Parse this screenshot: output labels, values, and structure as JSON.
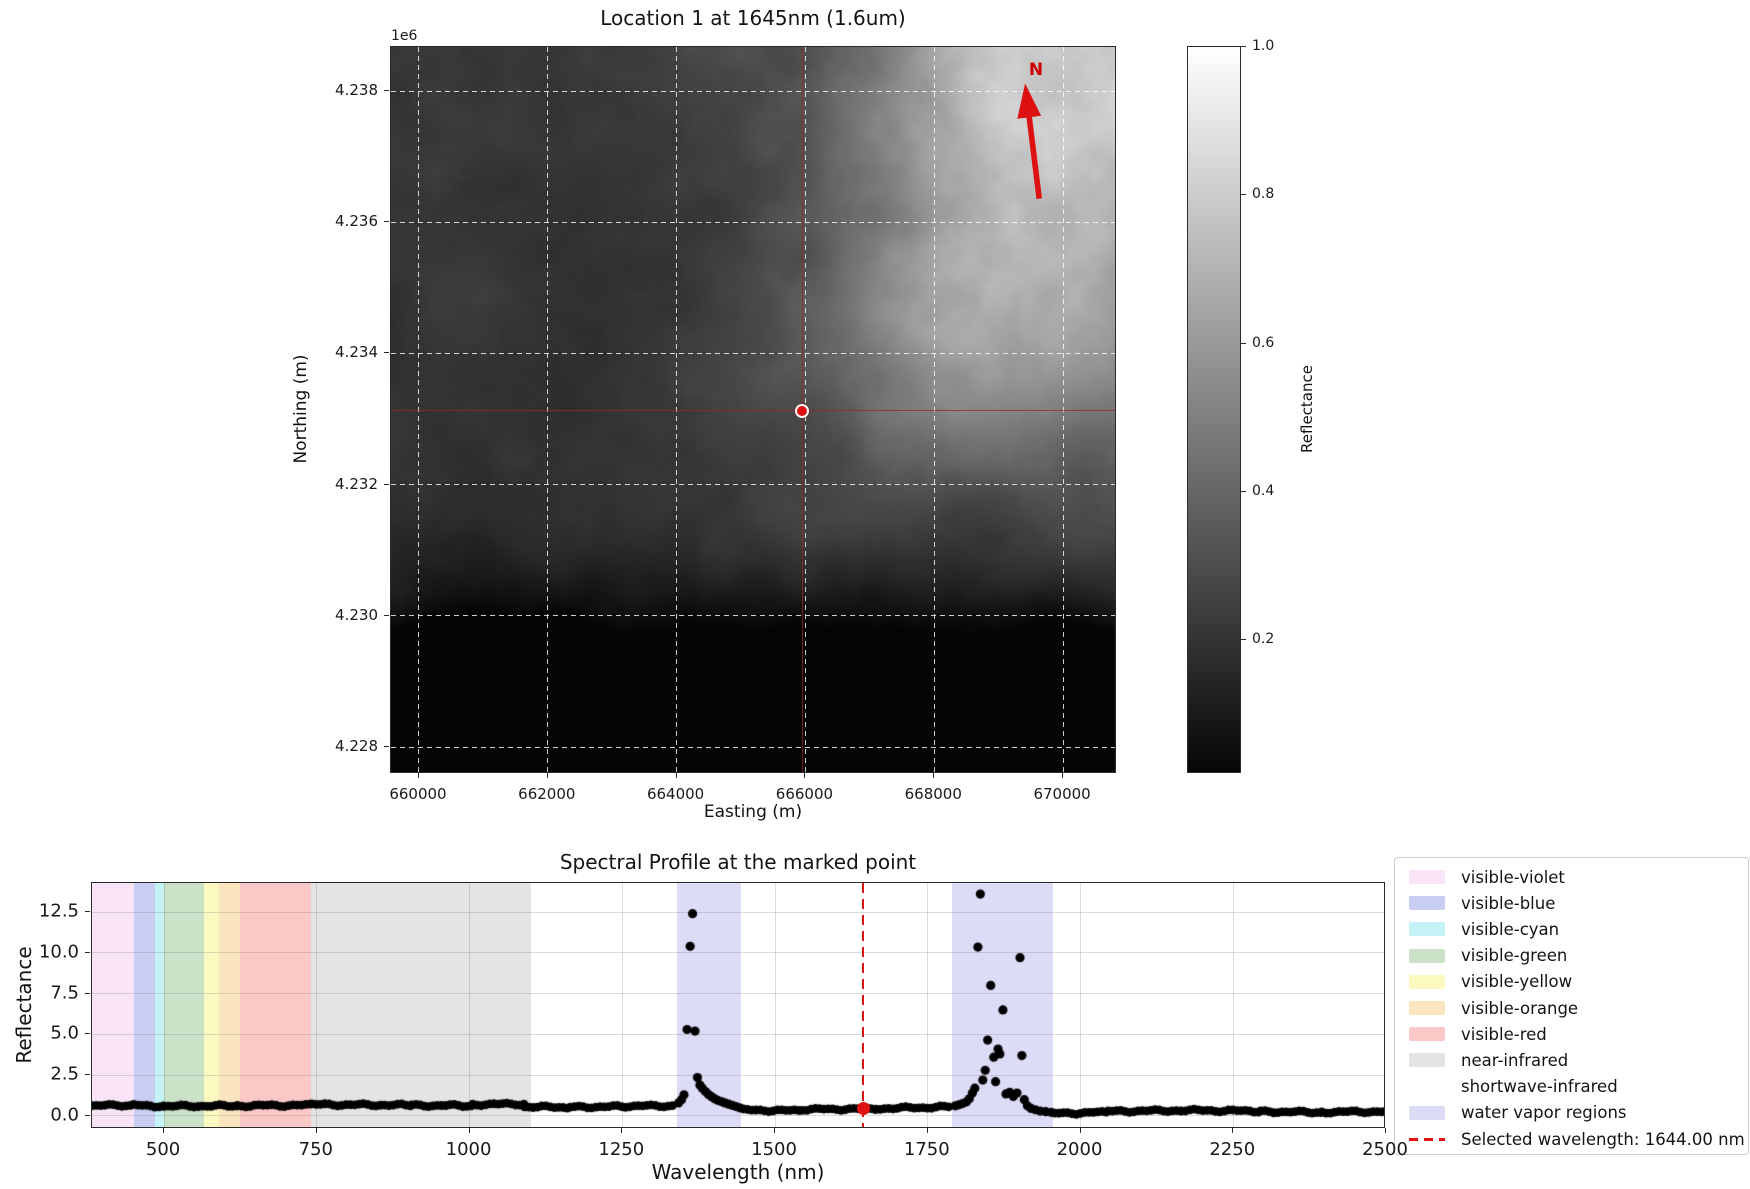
{
  "map_panel": {
    "title": "Location 1 at 1645nm (1.6um)",
    "offset_label": "1e6",
    "xlabel": "Easting (m)",
    "ylabel": "Northing (m)",
    "x_tick_labels": [
      "660000",
      "662000",
      "664000",
      "666000",
      "668000",
      "670000"
    ],
    "x_tick_values": [
      660000,
      662000,
      664000,
      666000,
      668000,
      670000
    ],
    "y_tick_labels": [
      "4.238",
      "4.236",
      "4.234",
      "4.232",
      "4.230",
      "4.228"
    ],
    "y_tick_values": [
      4238000,
      4236000,
      4234000,
      4232000,
      4230000,
      4228000
    ],
    "extent": {
      "easting_range": [
        659566,
        670837
      ],
      "northing_range": [
        4227589,
        4238671
      ]
    },
    "north_label": "N",
    "marked_point": {
      "easting_m": 665950,
      "northing_m": 4233130
    },
    "marker_color": "#dd1111",
    "marker_edge_color": "#ffffff",
    "crosshair_color": "rgba(150,40,40,0.75)",
    "arrow_color": "#dd1111"
  },
  "colorbar": {
    "label": "Reflectance",
    "tick_labels": [
      "1.0",
      "0.8",
      "0.6",
      "0.4",
      "0.2"
    ],
    "tick_values": [
      1.0,
      0.8,
      0.6,
      0.4,
      0.2
    ],
    "vmax": 1.0,
    "vmin": 0.02,
    "top_color": "#ffffff",
    "bottom_color": "#060606"
  },
  "spectral_panel": {
    "title": "Spectral Profile at the marked point",
    "xlabel": "Wavelength (nm)",
    "ylabel": "Reflectance",
    "x_tick_labels": [
      "500",
      "750",
      "1000",
      "1250",
      "1500",
      "1750",
      "2000",
      "2250",
      "2500"
    ],
    "x_tick_values": [
      500,
      750,
      1000,
      1250,
      1500,
      1750,
      2000,
      2250,
      2500
    ],
    "y_tick_labels": [
      "0.0",
      "2.5",
      "5.0",
      "7.5",
      "10.0",
      "12.5"
    ],
    "y_tick_values": [
      0,
      2.5,
      5,
      7.5,
      10,
      12.5
    ]
  },
  "legend": {
    "items": [
      {
        "label": "visible-violet",
        "kind": "patch",
        "color": "#f8e4f6"
      },
      {
        "label": "visible-blue",
        "kind": "patch",
        "color": "#c9cdf2"
      },
      {
        "label": "visible-cyan",
        "kind": "patch",
        "color": "#c4f2f6"
      },
      {
        "label": "visible-green",
        "kind": "patch",
        "color": "#cbe1c8"
      },
      {
        "label": "visible-yellow",
        "kind": "patch",
        "color": "#fbf9c0"
      },
      {
        "label": "visible-orange",
        "kind": "patch",
        "color": "#fbe5c1"
      },
      {
        "label": "visible-red",
        "kind": "patch",
        "color": "#fac8c6"
      },
      {
        "label": "near-infrared",
        "kind": "patch",
        "color": "#e4e4e4"
      },
      {
        "label": "shortwave-infrared",
        "kind": "patch",
        "color": "#ffffff"
      },
      {
        "label": "water vapor regions",
        "kind": "patch",
        "color": "#dddcf7"
      },
      {
        "label": "Selected wavelength: 1644.00 nm",
        "kind": "dashed-line",
        "color": "#e01212"
      }
    ]
  },
  "chart_data": {
    "type": "scatter",
    "title": "Spectral Profile at the marked point",
    "xlabel": "Wavelength (nm)",
    "ylabel": "Reflectance",
    "xlim": [
      382,
      2500
    ],
    "ylim": [
      -0.8,
      14.28
    ],
    "grid": true,
    "point_color": "#000000",
    "legend_position": "outside-right",
    "regions": [
      {
        "label": "visible-violet",
        "from": 382,
        "to": 450,
        "color": "#f8e4f6"
      },
      {
        "label": "visible-blue",
        "from": 450,
        "to": 485,
        "color": "#c9cdf2"
      },
      {
        "label": "visible-cyan",
        "from": 485,
        "to": 500,
        "color": "#c4f2f6"
      },
      {
        "label": "visible-green",
        "from": 500,
        "to": 565,
        "color": "#cbe1c8"
      },
      {
        "label": "visible-yellow",
        "from": 565,
        "to": 590,
        "color": "#fbf9c0"
      },
      {
        "label": "visible-orange",
        "from": 590,
        "to": 625,
        "color": "#fbe5c1"
      },
      {
        "label": "visible-red",
        "from": 625,
        "to": 740,
        "color": "#fac8c6"
      },
      {
        "label": "near-infrared",
        "from": 740,
        "to": 1100,
        "color": "#e4e4e4"
      },
      {
        "label": "shortwave-infrared",
        "from": 1100,
        "to": 2500,
        "color": "#ffffff"
      },
      {
        "label": "water vapor regions",
        "from": 1340,
        "to": 1445,
        "color": "#dddcf7"
      },
      {
        "label": "water vapor regions",
        "from": 1790,
        "to": 1955,
        "color": "#dddcf7"
      }
    ],
    "selected_wavelength": {
      "x": 1644.0,
      "y": 0.43,
      "line_color": "#e01212",
      "label": "Selected wavelength: 1644.00 nm"
    },
    "baseline_segments": [
      {
        "from": 382,
        "to": 450,
        "v0": 0.63,
        "v1": 0.66
      },
      {
        "from": 450,
        "to": 500,
        "v0": 0.66,
        "v1": 0.6
      },
      {
        "from": 500,
        "to": 620,
        "v0": 0.6,
        "v1": 0.62
      },
      {
        "from": 620,
        "to": 742,
        "v0": 0.63,
        "v1": 0.66
      },
      {
        "from": 742,
        "to": 905,
        "v0": 0.7,
        "v1": 0.66
      },
      {
        "from": 905,
        "to": 1005,
        "v0": 0.65,
        "v1": 0.63
      },
      {
        "from": 1005,
        "to": 1090,
        "v0": 0.7,
        "v1": 0.74
      },
      {
        "from": 1090,
        "to": 1165,
        "v0": 0.57,
        "v1": 0.52
      },
      {
        "from": 1165,
        "to": 1255,
        "v0": 0.54,
        "v1": 0.58
      },
      {
        "from": 1255,
        "to": 1338,
        "v0": 0.6,
        "v1": 0.63
      },
      {
        "from": 1448,
        "to": 1545,
        "v0": 0.36,
        "v1": 0.32
      },
      {
        "from": 1545,
        "to": 1665,
        "v0": 0.4,
        "v1": 0.44
      },
      {
        "from": 1665,
        "to": 1790,
        "v0": 0.45,
        "v1": 0.56
      },
      {
        "from": 1958,
        "to": 2045,
        "v0": 0.15,
        "v1": 0.23
      },
      {
        "from": 2045,
        "to": 2165,
        "v0": 0.28,
        "v1": 0.34
      },
      {
        "from": 2165,
        "to": 2295,
        "v0": 0.35,
        "v1": 0.3
      },
      {
        "from": 2295,
        "to": 2395,
        "v0": 0.27,
        "v1": 0.22
      },
      {
        "from": 2395,
        "to": 2500,
        "v0": 0.24,
        "v1": 0.27
      }
    ],
    "peak_points": [
      [
        1342,
        0.8
      ],
      [
        1347,
        1.0
      ],
      [
        1351,
        1.3
      ],
      [
        1356,
        5.3
      ],
      [
        1361,
        10.4
      ],
      [
        1365,
        12.4
      ],
      [
        1369,
        5.2
      ],
      [
        1373,
        2.35
      ],
      [
        1377,
        1.9
      ],
      [
        1381,
        1.7
      ],
      [
        1386,
        1.5
      ],
      [
        1391,
        1.32
      ],
      [
        1396,
        1.18
      ],
      [
        1401,
        1.06
      ],
      [
        1406,
        0.96
      ],
      [
        1412,
        0.88
      ],
      [
        1418,
        0.8
      ],
      [
        1424,
        0.72
      ],
      [
        1430,
        0.65
      ],
      [
        1436,
        0.58
      ],
      [
        1442,
        0.5
      ],
      [
        1795,
        0.62
      ],
      [
        1801,
        0.68
      ],
      [
        1807,
        0.76
      ],
      [
        1813,
        0.86
      ],
      [
        1818,
        1.05
      ],
      [
        1823,
        1.4
      ],
      [
        1827,
        1.7
      ],
      [
        1832,
        10.35
      ],
      [
        1836,
        13.6
      ],
      [
        1840,
        2.2
      ],
      [
        1844,
        2.8
      ],
      [
        1848,
        4.65
      ],
      [
        1853,
        8.0
      ],
      [
        1858,
        3.6
      ],
      [
        1861,
        2.1
      ],
      [
        1865,
        4.1
      ],
      [
        1868,
        3.8
      ],
      [
        1873,
        6.5
      ],
      [
        1878,
        1.35
      ],
      [
        1884,
        1.45
      ],
      [
        1890,
        1.2
      ],
      [
        1896,
        1.4
      ],
      [
        1901,
        9.7
      ],
      [
        1904,
        3.7
      ],
      [
        1908,
        1.0
      ],
      [
        1913,
        0.62
      ],
      [
        1919,
        0.46
      ],
      [
        1926,
        0.38
      ],
      [
        1934,
        0.3
      ],
      [
        1943,
        0.26
      ],
      [
        1952,
        0.22
      ]
    ]
  }
}
